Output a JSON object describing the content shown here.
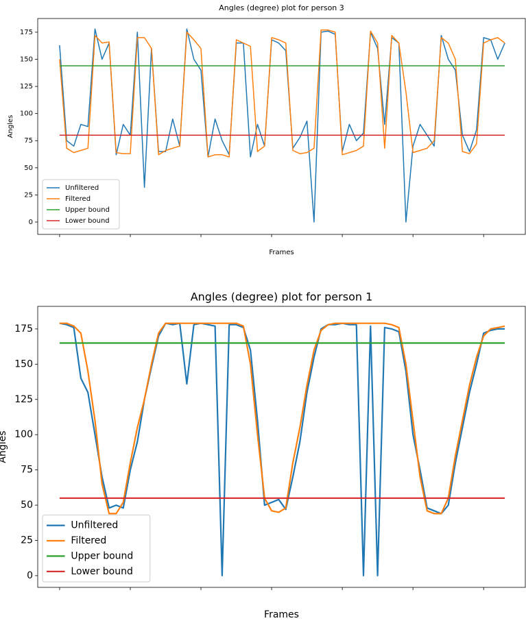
{
  "chart_data": [
    {
      "type": "line",
      "title": "Angles (degree) plot for person 3",
      "xlabel": "Frames",
      "ylabel": "Angles",
      "x": [
        0,
        10,
        20,
        30,
        40,
        50,
        60,
        70,
        80,
        90,
        100,
        110,
        120,
        130,
        140,
        150,
        160,
        170,
        180,
        190,
        200,
        210,
        220,
        230,
        240,
        250,
        260,
        270,
        280,
        290,
        300,
        310,
        320,
        330,
        340,
        350,
        360,
        370,
        380,
        390,
        400,
        410,
        420,
        430,
        440,
        450,
        460,
        470,
        480,
        490,
        500,
        510,
        520,
        530,
        540,
        550,
        560,
        570,
        580,
        590,
        600,
        610,
        620,
        630
      ],
      "series": [
        {
          "name": "Unfiltered",
          "color": "#1f77b4",
          "values": [
            163,
            75,
            70,
            90,
            88,
            178,
            150,
            165,
            62,
            90,
            80,
            175,
            32,
            160,
            65,
            65,
            95,
            70,
            178,
            150,
            140,
            60,
            95,
            75,
            62,
            165,
            165,
            60,
            90,
            70,
            168,
            165,
            158,
            68,
            78,
            93,
            0,
            175,
            176,
            173,
            65,
            90,
            75,
            82,
            175,
            160,
            90,
            170,
            165,
            0,
            70,
            90,
            80,
            70,
            172,
            150,
            140,
            80,
            65,
            85,
            170,
            168,
            150,
            165
          ]
        },
        {
          "name": "Filtered",
          "color": "#ff7f0e",
          "values": [
            150,
            68,
            64,
            66,
            68,
            172,
            165,
            166,
            64,
            63,
            63,
            170,
            170,
            160,
            62,
            66,
            68,
            70,
            175,
            168,
            160,
            60,
            62,
            62,
            60,
            168,
            165,
            162,
            65,
            70,
            170,
            168,
            165,
            66,
            63,
            64,
            68,
            177,
            177,
            175,
            62,
            64,
            66,
            70,
            176,
            165,
            68,
            172,
            165,
            120,
            64,
            66,
            68,
            75,
            170,
            165,
            150,
            65,
            63,
            72,
            165,
            168,
            170,
            165
          ]
        },
        {
          "name": "Upper bound",
          "color": "#2ca02c",
          "x": [
            0,
            630
          ],
          "values": [
            144,
            144
          ]
        },
        {
          "name": "Lower bound",
          "color": "#d62728",
          "x": [
            0,
            630
          ],
          "values": [
            80,
            80
          ]
        }
      ],
      "xlim": [
        -31,
        659
      ],
      "xticks": [
        0,
        100,
        200,
        300,
        400,
        500,
        600
      ],
      "ylim": [
        -11.4,
        187.6
      ],
      "yticks": [
        0,
        25,
        50,
        75,
        100,
        125,
        150,
        175
      ],
      "legend": "lower left"
    },
    {
      "type": "line",
      "title": "Angles (degree) plot for person 1",
      "xlabel": "Frames",
      "ylabel": "Angles",
      "x": [
        0,
        10,
        20,
        30,
        40,
        50,
        60,
        70,
        80,
        90,
        100,
        110,
        120,
        130,
        140,
        150,
        160,
        170,
        180,
        190,
        200,
        210,
        220,
        230,
        240,
        250,
        260,
        270,
        280,
        290,
        300,
        310,
        320,
        330,
        340,
        350,
        360,
        370,
        380,
        390,
        400,
        410,
        420,
        430,
        440,
        450,
        460,
        470,
        480,
        490,
        500,
        510,
        520,
        530,
        540,
        550,
        560,
        570,
        580,
        590,
        600,
        610,
        620,
        630
      ],
      "series": [
        {
          "name": "Unfiltered",
          "color": "#1f77b4",
          "values": [
            179,
            178,
            176,
            140,
            130,
            100,
            70,
            48,
            50,
            48,
            75,
            95,
            125,
            148,
            170,
            179,
            178,
            179,
            136,
            178,
            179,
            178,
            177,
            0,
            178,
            178,
            176,
            160,
            110,
            50,
            52,
            54,
            47,
            70,
            95,
            130,
            155,
            175,
            178,
            178,
            179,
            178,
            178,
            0,
            177,
            0,
            176,
            175,
            173,
            145,
            100,
            75,
            48,
            46,
            44,
            50,
            80,
            105,
            130,
            150,
            172,
            174,
            175,
            175
          ]
        },
        {
          "name": "Filtered",
          "color": "#ff7f0e",
          "values": [
            179,
            179,
            177,
            172,
            145,
            110,
            65,
            44,
            44,
            52,
            80,
            105,
            125,
            150,
            172,
            179,
            179,
            179,
            179,
            179,
            179,
            179,
            179,
            179,
            179,
            179,
            177,
            150,
            100,
            55,
            46,
            45,
            48,
            80,
            105,
            135,
            160,
            174,
            178,
            179,
            179,
            179,
            179,
            179,
            179,
            179,
            179,
            178,
            176,
            150,
            110,
            70,
            46,
            44,
            44,
            55,
            85,
            110,
            135,
            155,
            170,
            175,
            176,
            177
          ]
        },
        {
          "name": "Upper bound",
          "color": "#2ca02c",
          "x": [
            0,
            630
          ],
          "values": [
            165,
            165
          ]
        },
        {
          "name": "Lower bound",
          "color": "#d62728",
          "x": [
            0,
            630
          ],
          "values": [
            55,
            55
          ]
        }
      ],
      "xlim": [
        -31,
        659
      ],
      "xticks": [
        0,
        100,
        200,
        300,
        400,
        500,
        600
      ],
      "ylim": [
        -8.3,
        191
      ],
      "yticks": [
        0,
        25,
        50,
        75,
        100,
        125,
        150,
        175
      ],
      "legend": "lower left"
    }
  ]
}
